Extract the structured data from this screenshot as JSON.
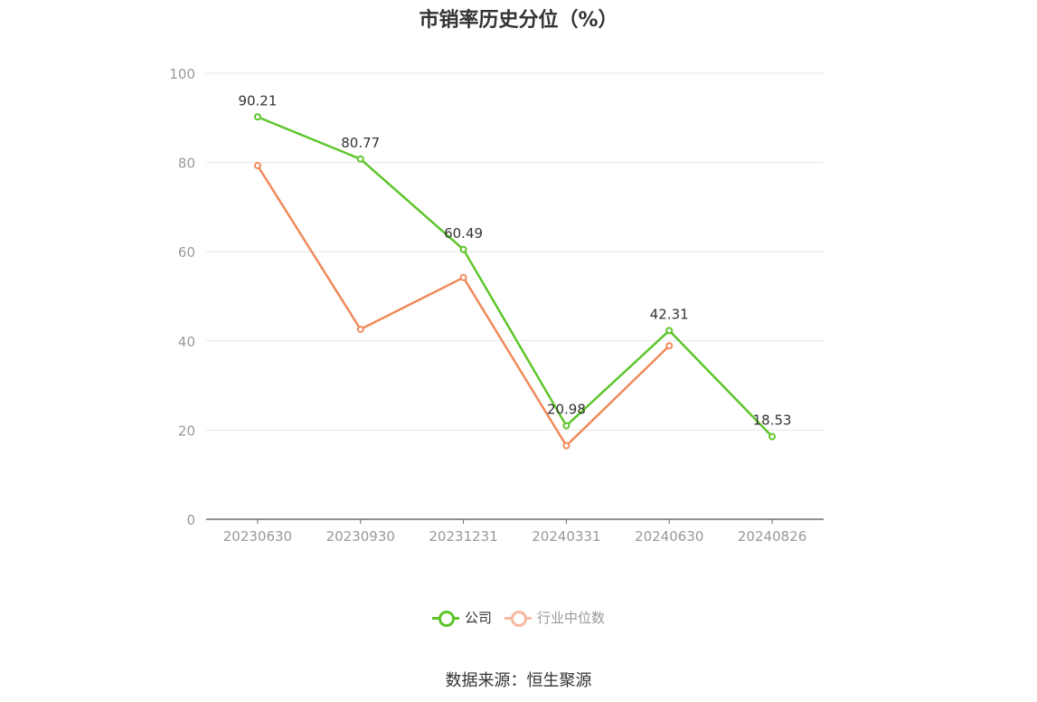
{
  "title": "市销率历史分位（%）",
  "source": "数据来源：恒生聚源",
  "chart_data": {
    "type": "line",
    "categories": [
      "20230630",
      "20230930",
      "20231231",
      "20240331",
      "20240630",
      "20240826"
    ],
    "ylim": [
      0,
      100
    ],
    "yticks": [
      0,
      20,
      40,
      60,
      80,
      100
    ],
    "grid": true,
    "legend_position": "bottom",
    "series": [
      {
        "name": "公司",
        "color": "#5dc52a",
        "values": [
          90.21,
          80.77,
          60.49,
          20.98,
          42.31,
          18.53
        ],
        "labels": [
          "90.21",
          "80.77",
          "60.49",
          "20.98",
          "42.31",
          "18.53"
        ]
      },
      {
        "name": "行业中位数",
        "color": "#f08a5b",
        "values": [
          79.3,
          42.6,
          54.2,
          16.5,
          38.9,
          null
        ],
        "labels": []
      }
    ]
  },
  "legend": [
    {
      "label": "公司",
      "color": "#5dc52a",
      "text_color": "#333333"
    },
    {
      "label": "行业中位数",
      "color": "#f7b8a0",
      "text_color": "#999999"
    }
  ]
}
